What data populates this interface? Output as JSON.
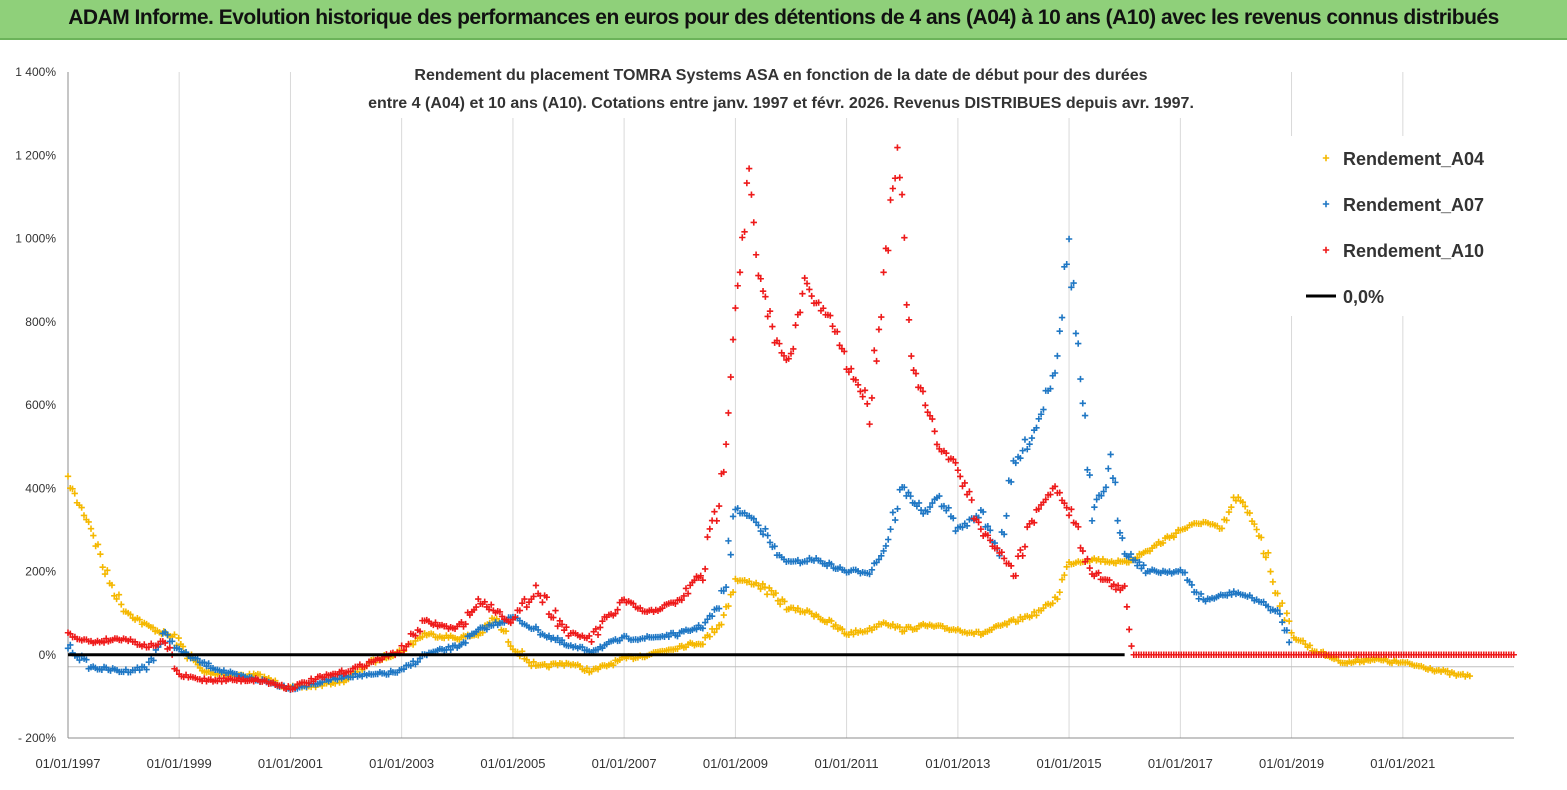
{
  "banner": {
    "title": "ADAM Informe. Evolution historique des performances en euros pour des détentions de 4 ans (A04) à 10 ans (A10) avec les revenus connus distribués",
    "color": "#8fd07a"
  },
  "chart_data": {
    "type": "scatter",
    "title_line1": "Rendement du placement TOMRA Systems ASA en fonction de la date de début pour des durées",
    "title_line2": "entre 4 (A04) et 10 ans (A10). Cotations entre janv. 1997 et févr. 2026. Revenus DISTRIBUES depuis avr. 1997.",
    "ylim": [
      -200,
      1400
    ],
    "y_ticks": [
      -200,
      0,
      200,
      400,
      600,
      800,
      1000,
      1200,
      1400
    ],
    "y_tick_labels": [
      "- 200%",
      "0%",
      "200%",
      "400%",
      "600%",
      "800%",
      "1 000%",
      "1 200%",
      "1 400%"
    ],
    "x_range": [
      "1997-01-01",
      "2023-01-01"
    ],
    "x_ticks": [
      "1997-01-01",
      "1999-01-01",
      "2001-01-01",
      "2003-01-01",
      "2005-01-01",
      "2007-01-01",
      "2009-01-01",
      "2011-01-01",
      "2013-01-01",
      "2015-01-01",
      "2017-01-01",
      "2019-01-01",
      "2021-01-01"
    ],
    "x_tick_labels": [
      "01/01/1997",
      "01/01/1999",
      "01/01/2001",
      "01/01/2003",
      "01/01/2005",
      "01/01/2007",
      "01/01/2009",
      "01/01/2011",
      "01/01/2013",
      "01/01/2015",
      "01/01/2017",
      "01/01/2019",
      "01/01/2021"
    ],
    "grid": "vertical",
    "legend_position": "top-right",
    "series": [
      {
        "name": "Rendement_A04",
        "color": "#f5b800",
        "marker": "+",
        "x": [
          "1997-01-01",
          "1997-03-01",
          "1997-06-01",
          "1997-09-01",
          "1998-01-01",
          "1998-06-01",
          "1998-12-01",
          "1999-06-01",
          "2000-01-01",
          "2000-06-01",
          "2001-01-01",
          "2001-06-01",
          "2002-01-01",
          "2002-06-01",
          "2003-01-01",
          "2003-06-01",
          "2004-01-01",
          "2004-06-01",
          "2004-09-01",
          "2005-01-01",
          "2005-06-01",
          "2006-01-01",
          "2006-06-01",
          "2007-01-01",
          "2007-06-01",
          "2008-01-01",
          "2008-06-01",
          "2008-10-01",
          "2009-01-01",
          "2009-06-01",
          "2010-01-01",
          "2010-06-01",
          "2011-01-01",
          "2011-06-01",
          "2011-09-01",
          "2012-01-01",
          "2012-06-01",
          "2013-01-01",
          "2013-06-01",
          "2014-01-01",
          "2014-06-01",
          "2014-10-01",
          "2015-01-01",
          "2015-06-01",
          "2016-01-01",
          "2016-06-01",
          "2017-01-01",
          "2017-06-01",
          "2017-10-01",
          "2018-01-01",
          "2018-06-01",
          "2018-10-01",
          "2019-01-01",
          "2019-06-01",
          "2020-01-01",
          "2020-06-01",
          "2021-01-01",
          "2021-06-01",
          "2022-01-01",
          "2022-04-01"
        ],
        "y": [
          420,
          370,
          310,
          200,
          110,
          70,
          40,
          -40,
          -50,
          -50,
          -80,
          -75,
          -60,
          -20,
          10,
          50,
          40,
          50,
          90,
          20,
          -30,
          -20,
          -40,
          -10,
          0,
          20,
          30,
          80,
          180,
          170,
          110,
          100,
          50,
          60,
          80,
          60,
          70,
          60,
          50,
          80,
          100,
          130,
          220,
          230,
          220,
          250,
          300,
          320,
          300,
          380,
          300,
          150,
          50,
          10,
          -20,
          -10,
          -20,
          -30,
          -50,
          -50
        ]
      },
      {
        "name": "Rendement_A07",
        "color": "#1f77c4",
        "marker": "+",
        "x": [
          "1997-01-01",
          "1997-06-01",
          "1998-01-01",
          "1998-06-01",
          "1998-10-01",
          "1999-01-01",
          "1999-06-01",
          "2000-01-01",
          "2000-06-01",
          "2001-01-01",
          "2001-06-01",
          "2002-01-01",
          "2002-06-01",
          "2003-01-01",
          "2003-06-01",
          "2004-01-01",
          "2004-06-01",
          "2005-01-01",
          "2005-06-01",
          "2006-01-01",
          "2006-06-01",
          "2007-01-01",
          "2007-06-01",
          "2008-01-01",
          "2008-06-01",
          "2008-10-01",
          "2009-01-01",
          "2009-06-01",
          "2009-10-01",
          "2010-01-01",
          "2010-06-01",
          "2011-01-01",
          "2011-06-01",
          "2011-09-01",
          "2012-01-01",
          "2012-06-01",
          "2012-09-01",
          "2013-01-01",
          "2013-06-01",
          "2013-10-01",
          "2014-01-01",
          "2014-06-01",
          "2014-10-01",
          "2015-01-01",
          "2015-04-01",
          "2015-06-01",
          "2015-10-01",
          "2016-01-01",
          "2016-06-01",
          "2017-01-01",
          "2017-06-01",
          "2018-01-01",
          "2018-06-01",
          "2018-10-01",
          "2019-01-01"
        ],
        "y": [
          20,
          -30,
          -40,
          -30,
          50,
          10,
          -20,
          -50,
          -60,
          -80,
          -70,
          -50,
          -50,
          -40,
          0,
          20,
          60,
          90,
          60,
          20,
          10,
          40,
          40,
          50,
          70,
          120,
          350,
          320,
          240,
          220,
          230,
          200,
          200,
          250,
          400,
          340,
          380,
          300,
          340,
          250,
          450,
          550,
          700,
          990,
          600,
          320,
          450,
          250,
          200,
          200,
          130,
          150,
          130,
          100,
          30
        ]
      },
      {
        "name": "Rendement_A10",
        "color": "#ee1a1a",
        "marker": "+",
        "x": [
          "1997-01-01",
          "1997-06-01",
          "1998-01-01",
          "1998-06-01",
          "1998-10-01",
          "1999-01-01",
          "1999-06-01",
          "2000-01-01",
          "2000-06-01",
          "2001-01-01",
          "2001-06-01",
          "2002-01-01",
          "2002-06-01",
          "2003-01-01",
          "2003-06-01",
          "2004-01-01",
          "2004-06-01",
          "2005-01-01",
          "2005-06-01",
          "2006-01-01",
          "2006-06-01",
          "2007-01-01",
          "2007-06-01",
          "2008-01-01",
          "2008-06-01",
          "2008-10-01",
          "2009-01-01",
          "2009-04-01",
          "2009-06-01",
          "2009-10-01",
          "2010-01-01",
          "2010-04-01",
          "2010-06-01",
          "2010-10-01",
          "2011-01-01",
          "2011-06-01",
          "2011-09-01",
          "2011-12-01",
          "2012-03-01",
          "2012-06-01",
          "2012-09-01",
          "2013-01-01",
          "2013-06-01",
          "2013-10-01",
          "2014-01-01",
          "2014-06-01",
          "2014-10-01",
          "2015-01-01",
          "2015-06-01",
          "2016-01-01",
          "2016-03-01"
        ],
        "y": [
          50,
          30,
          40,
          20,
          30,
          -50,
          -60,
          -60,
          -60,
          -80,
          -60,
          -40,
          -20,
          10,
          80,
          60,
          130,
          80,
          160,
          50,
          40,
          130,
          100,
          130,
          200,
          400,
          850,
          1150,
          900,
          750,
          700,
          900,
          850,
          800,
          700,
          600,
          900,
          1250,
          700,
          600,
          500,
          450,
          300,
          250,
          200,
          350,
          400,
          350,
          200,
          150,
          0
        ]
      },
      {
        "name": "0,0%",
        "color": "#000000",
        "x": [
          "1997-01-01",
          "2016-01-01"
        ],
        "y": [
          0,
          0
        ]
      }
    ],
    "extra_marks": [
      {
        "color": "#ee1a1a",
        "x": [
          "2016-03-01",
          "2023-01-01"
        ],
        "y": [
          0,
          0
        ]
      }
    ]
  }
}
